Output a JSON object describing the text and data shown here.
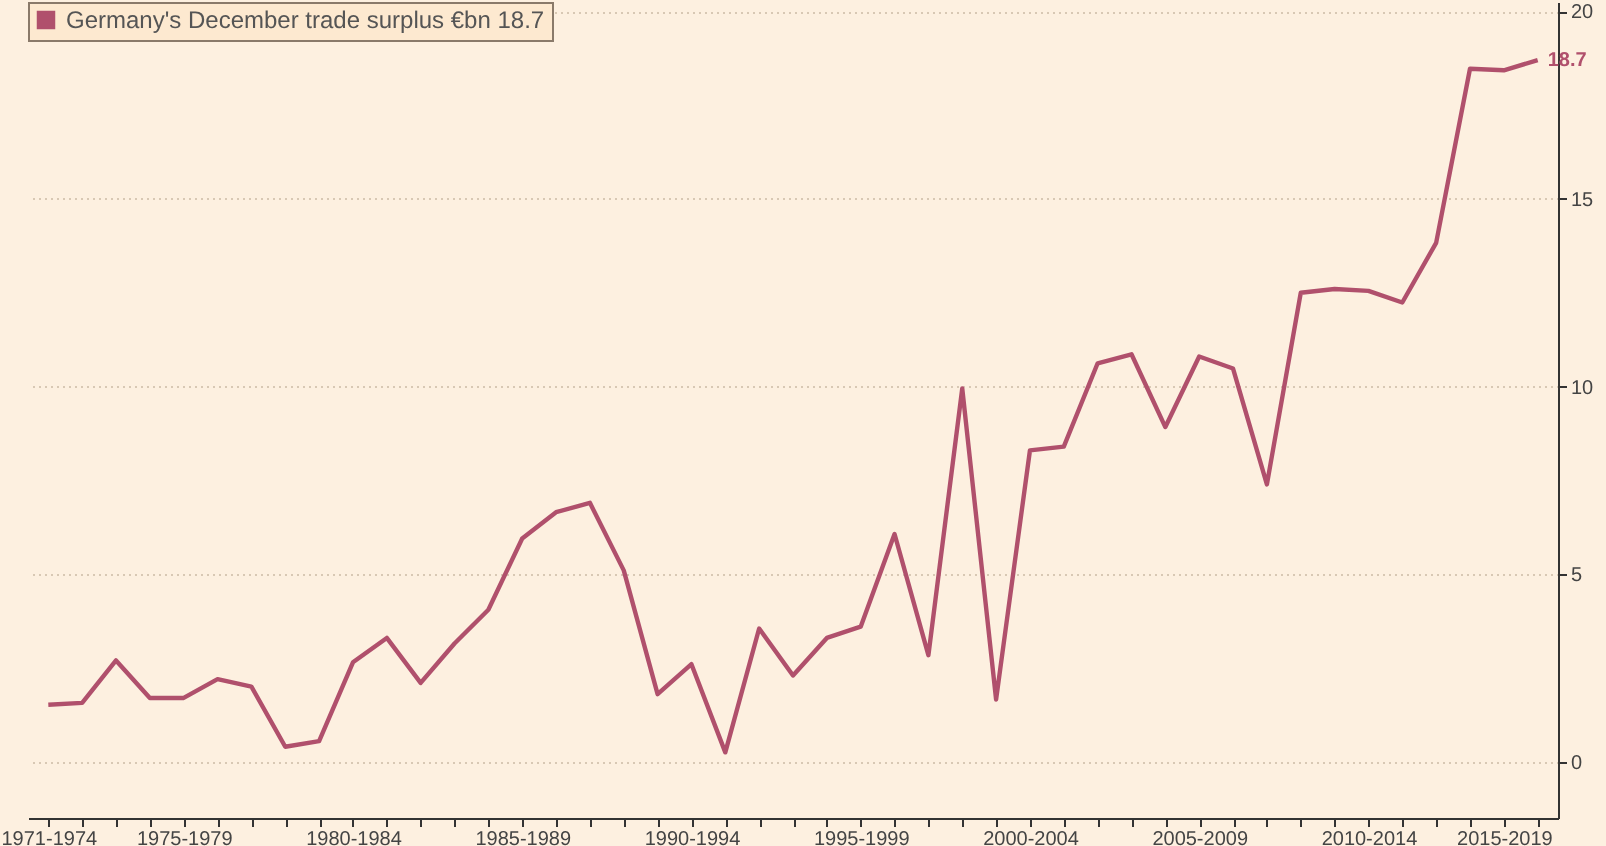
{
  "chart_data": {
    "type": "line",
    "categories": [
      "1971-1974",
      null,
      null,
      null,
      "1975-1979",
      null,
      null,
      null,
      null,
      "1980-1984",
      null,
      null,
      null,
      null,
      "1985-1989",
      null,
      null,
      null,
      null,
      "1990-1994",
      null,
      null,
      null,
      null,
      "1995-1999",
      null,
      null,
      null,
      null,
      "2000-2004",
      null,
      null,
      null,
      null,
      "2005-2009",
      null,
      null,
      null,
      null,
      "2010-2014",
      null,
      null,
      null,
      "2015-2019",
      null
    ],
    "series": [
      {
        "name": "Germany's December trade surplus €bn 18.7",
        "color": "#b0506c",
        "values": [
          1.52,
          1.57,
          2.7,
          1.7,
          1.7,
          2.2,
          2.0,
          0.4,
          0.55,
          2.65,
          3.3,
          2.1,
          3.15,
          4.05,
          5.95,
          6.65,
          6.9,
          5.1,
          1.8,
          2.6,
          0.25,
          3.55,
          2.3,
          3.3,
          3.6,
          6.07,
          2.84,
          9.95,
          1.66,
          8.3,
          8.4,
          10.62,
          10.86,
          8.92,
          10.8,
          10.48,
          7.39,
          12.5,
          12.6,
          12.55,
          12.24,
          13.83,
          18.47,
          18.43,
          18.7
        ],
        "value_labels": [
          null,
          null,
          null,
          null,
          null,
          null,
          null,
          null,
          null,
          null,
          null,
          null,
          null,
          null,
          null,
          null,
          null,
          null,
          null,
          null,
          null,
          null,
          null,
          null,
          null,
          null,
          null,
          null,
          null,
          null,
          null,
          null,
          null,
          null,
          null,
          null,
          null,
          null,
          null,
          null,
          null,
          null,
          null,
          null,
          "18.7"
        ]
      }
    ],
    "ylim": [
      -1.5,
      20.25
    ],
    "yticks": [
      0,
      5,
      10,
      15,
      20
    ],
    "grid": "y",
    "legend": "top left",
    "marker": "none",
    "line_style": "solid"
  }
}
